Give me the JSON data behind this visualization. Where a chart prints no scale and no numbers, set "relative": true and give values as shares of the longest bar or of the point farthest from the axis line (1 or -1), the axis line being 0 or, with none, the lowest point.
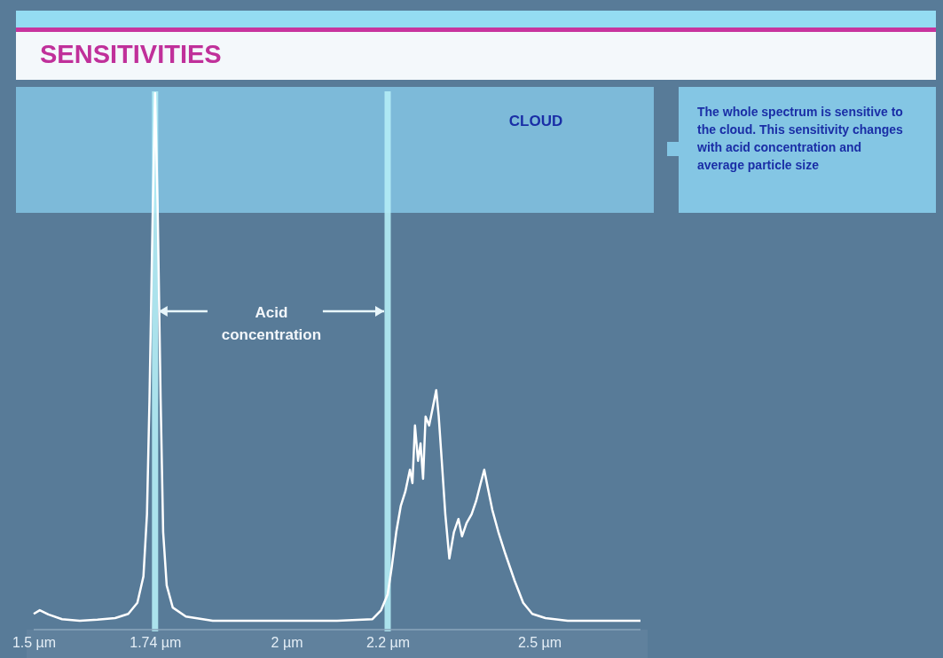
{
  "chart_data": {
    "type": "line",
    "title": "SENSITIVITIES",
    "relative": true,
    "x": [
      1.5,
      1.512,
      1.529,
      1.556,
      1.591,
      1.626,
      1.661,
      1.687,
      1.705,
      1.717,
      1.724,
      1.729,
      1.735,
      1.74,
      1.745,
      1.751,
      1.756,
      1.763,
      1.775,
      1.801,
      1.854,
      1.959,
      2.1,
      2.17,
      2.187,
      2.2,
      2.208,
      2.217,
      2.226,
      2.235,
      2.244,
      2.249,
      2.254,
      2.26,
      2.265,
      2.27,
      2.275,
      2.282,
      2.289,
      2.296,
      2.301,
      2.307,
      2.314,
      2.322,
      2.331,
      2.34,
      2.347,
      2.356,
      2.366,
      2.375,
      2.384,
      2.391,
      2.398,
      2.407,
      2.419,
      2.433,
      2.451,
      2.468,
      2.486,
      2.512,
      2.556,
      2.626,
      2.7
    ],
    "series": [
      {
        "color": "#ffffff",
        "values": [
          0.013,
          0.02,
          0.012,
          0.003,
          0,
          0.002,
          0.005,
          0.013,
          0.034,
          0.084,
          0.202,
          0.42,
          0.756,
          1,
          0.79,
          0.42,
          0.168,
          0.067,
          0.025,
          0.008,
          0,
          0,
          0,
          0.003,
          0.02,
          0.05,
          0.101,
          0.168,
          0.218,
          0.245,
          0.286,
          0.261,
          0.37,
          0.303,
          0.336,
          0.269,
          0.387,
          0.37,
          0.403,
          0.437,
          0.387,
          0.303,
          0.202,
          0.118,
          0.168,
          0.193,
          0.16,
          0.185,
          0.202,
          0.227,
          0.261,
          0.286,
          0.252,
          0.21,
          0.168,
          0.126,
          0.076,
          0.034,
          0.013,
          0.005,
          0,
          0,
          0
        ]
      }
    ],
    "xlim": [
      1.5,
      2.7
    ],
    "xticks": [
      {
        "value": 1.5,
        "label": "1.5 µm"
      },
      {
        "value": 1.74,
        "label": "1.74 µm"
      },
      {
        "value": 2,
        "label": "2 µm"
      },
      {
        "value": 2.2,
        "label": "2.2 µm"
      },
      {
        "value": 2.5,
        "label": "2.5 µm"
      }
    ],
    "ref_lines": [
      {
        "axis": "x",
        "value": 1.74,
        "color": "#b4eef6"
      },
      {
        "axis": "x",
        "value": 2.2,
        "color": "#b4eef6"
      }
    ],
    "annotations": [
      "CLOUD",
      "The whole spectrum is sensitive to the cloud. This sensitivity changes with acid concentration and average particle size",
      "Acid concentration"
    ],
    "grid": false,
    "marker": "none",
    "line_style": "solid"
  }
}
